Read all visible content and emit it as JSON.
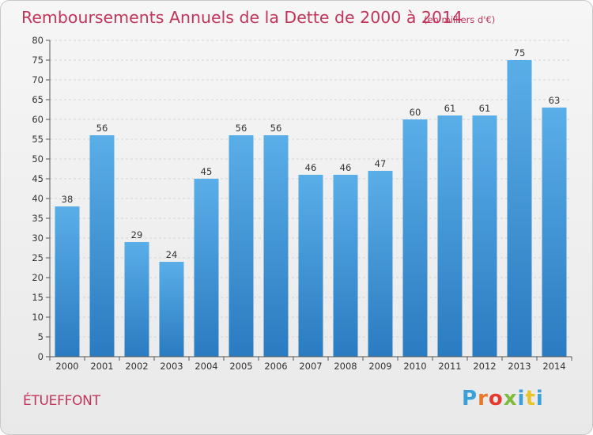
{
  "chart_data": {
    "type": "bar",
    "title": "Remboursements Annuels de la Dette de 2000 à 2014",
    "subtitle": "(en milliers d'€)",
    "categories": [
      "2000",
      "2001",
      "2002",
      "2003",
      "2004",
      "2005",
      "2006",
      "2007",
      "2008",
      "2009",
      "2010",
      "2011",
      "2012",
      "2013",
      "2014"
    ],
    "values": [
      38,
      56,
      29,
      24,
      45,
      56,
      56,
      46,
      46,
      47,
      60,
      61,
      61,
      75,
      63
    ],
    "ylim": [
      0,
      80
    ],
    "yticks": [
      0,
      5,
      10,
      15,
      20,
      25,
      30,
      35,
      40,
      45,
      50,
      55,
      60,
      65,
      70,
      75,
      80
    ],
    "xlabel": "",
    "ylabel": "",
    "grid": true,
    "bar_color_top": "#5aaee8",
    "bar_color_bottom": "#2a7bc0"
  },
  "footer": {
    "commune": "ÉTUEFFONT",
    "logo_text": "Proxiti",
    "logo_colors": [
      "#3aa0d8",
      "#e8792a",
      "#e63a2e",
      "#7dbb3a",
      "#3aa0d8",
      "#e8c42a",
      "#3aa0d8"
    ]
  }
}
